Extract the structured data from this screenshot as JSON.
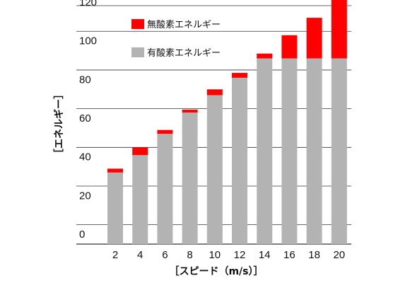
{
  "chart_data": {
    "type": "bar",
    "stacked": true,
    "categories": [
      "2",
      "4",
      "6",
      "8",
      "10",
      "12",
      "14",
      "16",
      "18",
      "20"
    ],
    "series": [
      {
        "name": "有酸素エネルギー",
        "color": "#b3b3b3",
        "values": [
          37,
          46,
          57,
          68,
          77,
          86,
          96,
          96,
          96,
          96
        ]
      },
      {
        "name": "無酸素エネルギー",
        "color": "#ff0000",
        "values": [
          2,
          4,
          2,
          1.5,
          3,
          2.5,
          2.5,
          12,
          21,
          31
        ]
      }
    ],
    "xlabel": "［スピード（m/s）］",
    "ylabel": "［エネルギー］",
    "ylim": [
      0,
      124
    ],
    "yticks": [
      0,
      20,
      40,
      60,
      80,
      100,
      120
    ],
    "grid": true,
    "legend": {
      "placement": "top-left",
      "order": [
        "無酸素エネルギー",
        "有酸素エネルギー"
      ]
    }
  }
}
